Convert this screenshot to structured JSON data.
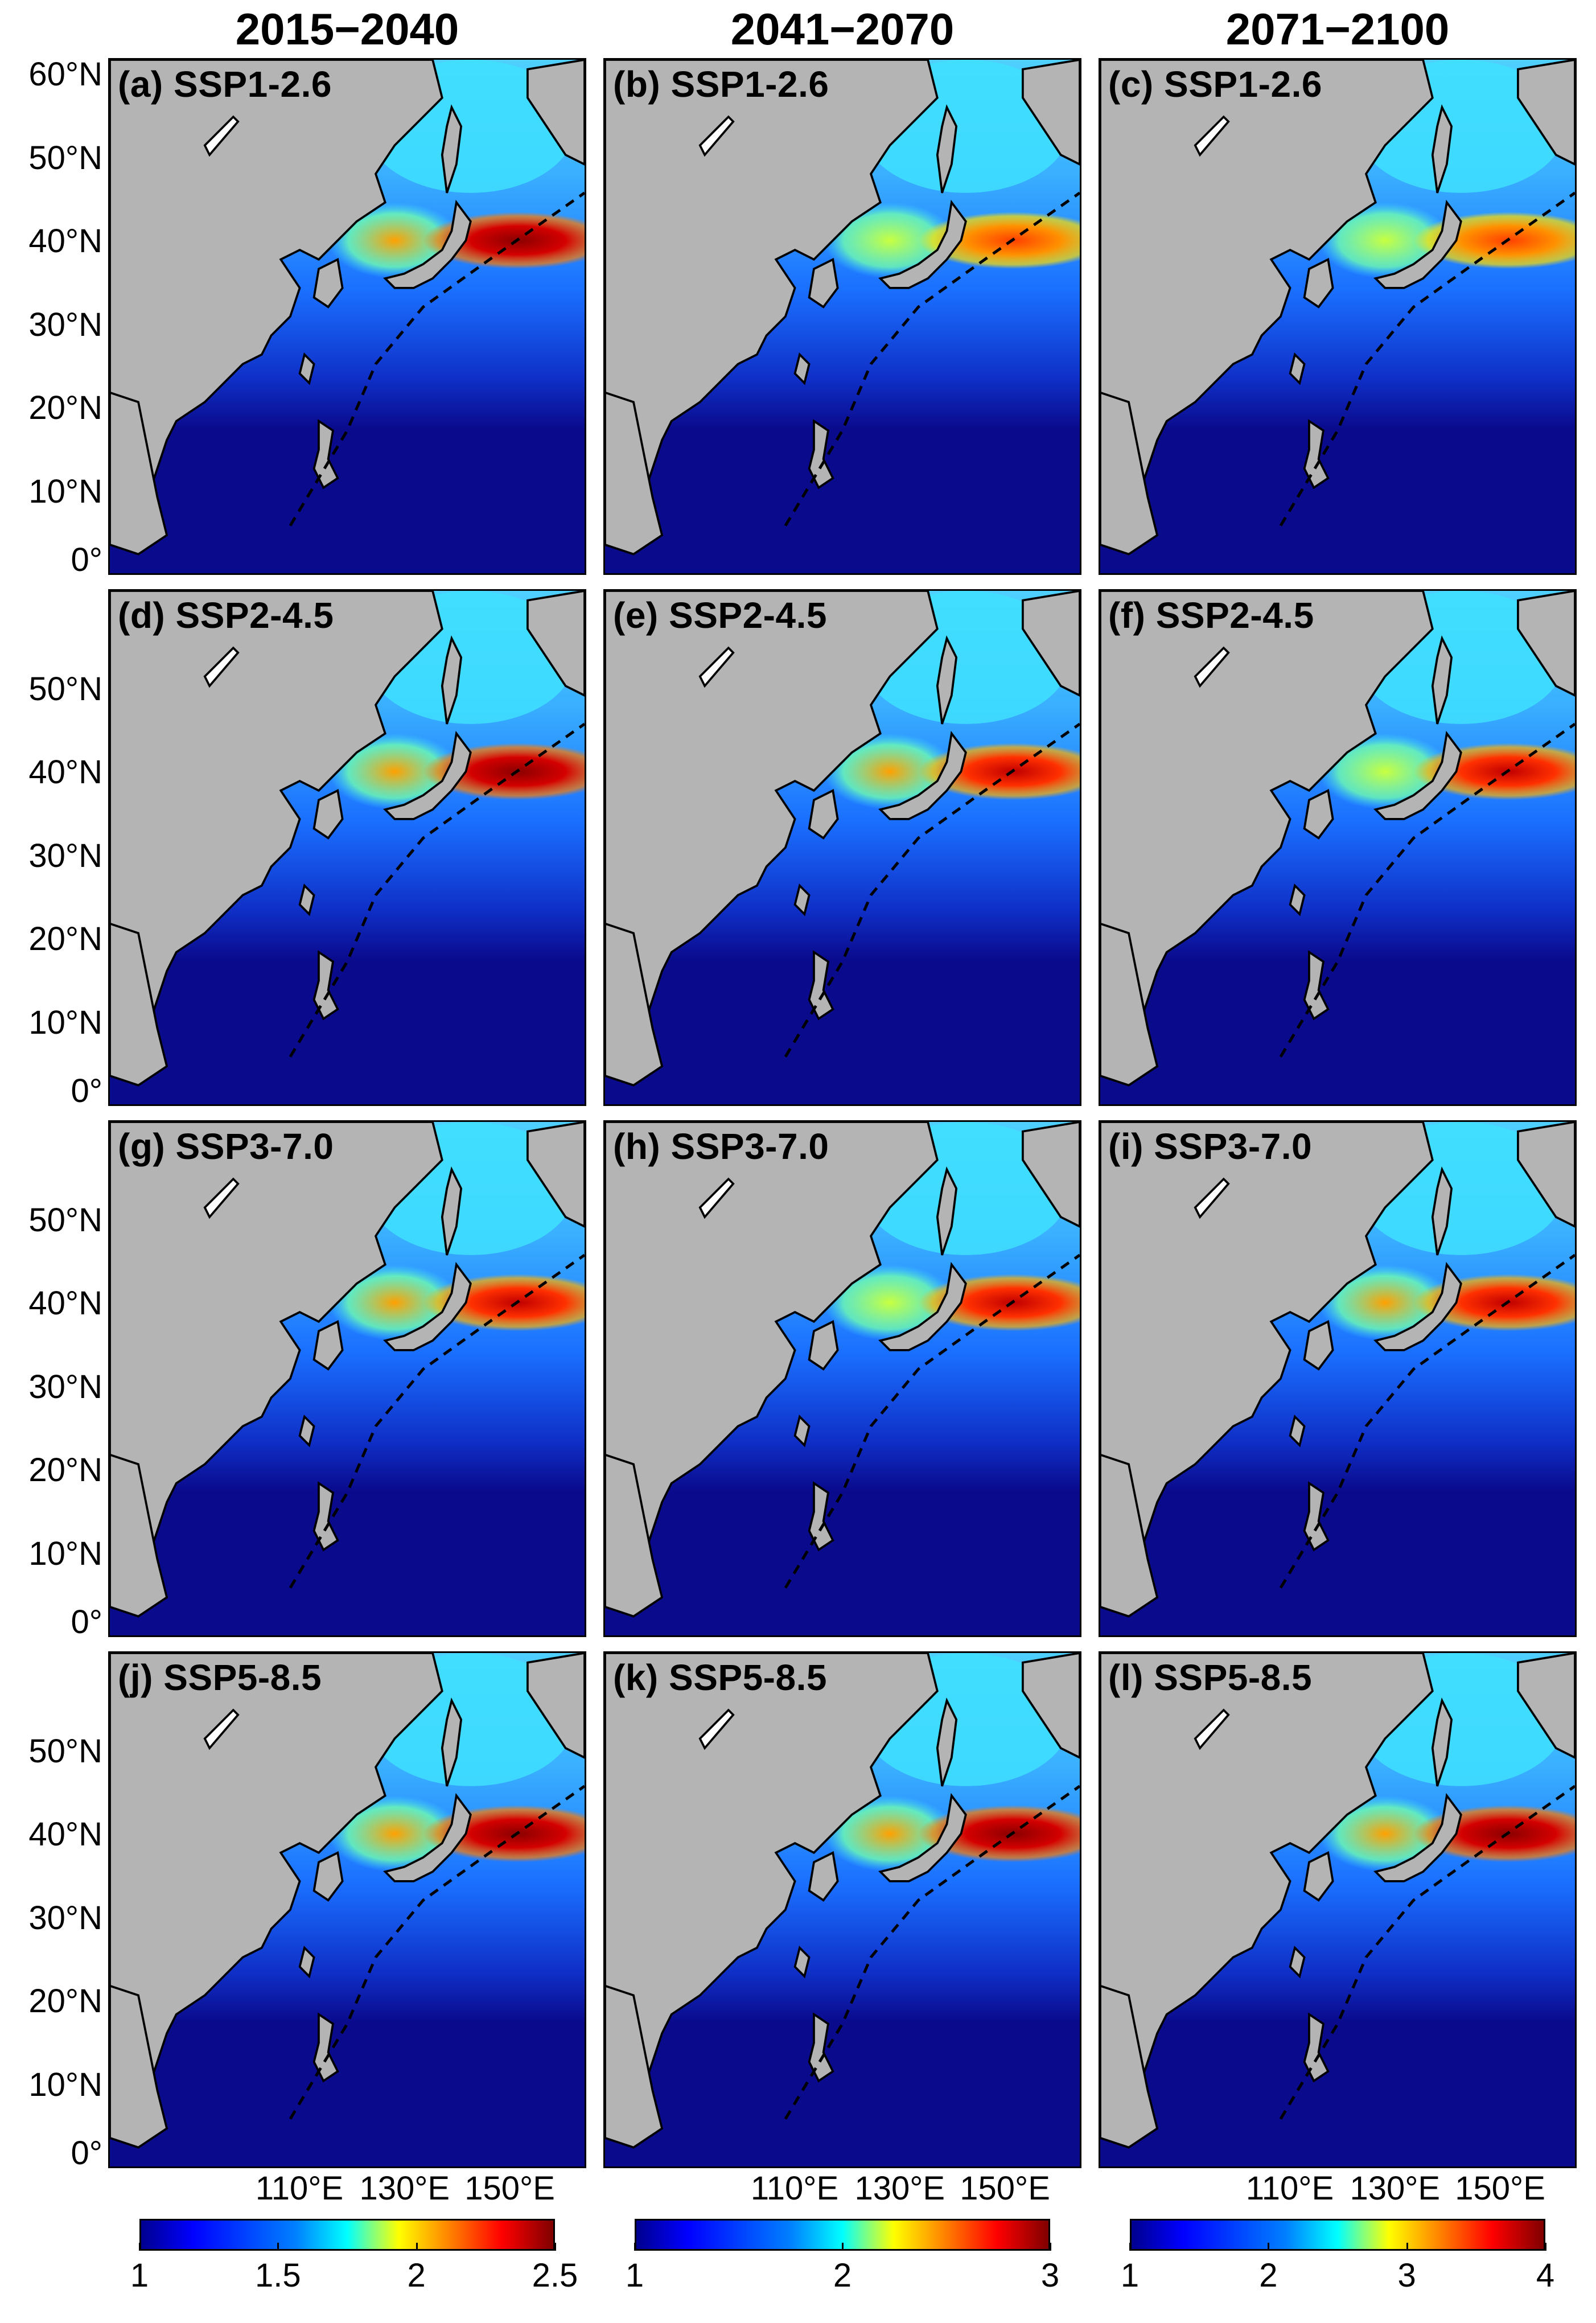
{
  "columns": [
    "2015−2040",
    "2041−2070",
    "2071−2100"
  ],
  "rows": [
    [
      {
        "label": "(a) SSP1-2.6",
        "intensity": 1.0
      },
      {
        "label": "(b) SSP1-2.6",
        "intensity": 0.65
      },
      {
        "label": "(c) SSP1-2.6",
        "intensity": 0.5
      }
    ],
    [
      {
        "label": "(d) SSP2-4.5",
        "intensity": 1.0
      },
      {
        "label": "(e) SSP2-4.5",
        "intensity": 0.8
      },
      {
        "label": "(f) SSP2-4.5",
        "intensity": 0.78
      }
    ],
    [
      {
        "label": "(g) SSP3-7.0",
        "intensity": 0.85
      },
      {
        "label": "(h) SSP3-7.0",
        "intensity": 0.75
      },
      {
        "label": "(i) SSP3-7.0",
        "intensity": 0.82
      }
    ],
    [
      {
        "label": "(j) SSP5-8.5",
        "intensity": 1.0
      },
      {
        "label": "(k) SSP5-8.5",
        "intensity": 0.95
      },
      {
        "label": "(l) SSP5-8.5",
        "intensity": 1.0
      }
    ]
  ],
  "y_ticks_first_row": [
    "60°N",
    "50°N",
    "40°N",
    "30°N",
    "20°N",
    "10°N",
    "0°"
  ],
  "y_ticks_other_rows": [
    "50°N",
    "40°N",
    "30°N",
    "20°N",
    "10°N",
    "0°"
  ],
  "x_ticks": [
    "110°E",
    "130°E",
    "150°E"
  ],
  "colorbars": [
    {
      "ticks": [
        "1",
        "1.5",
        "2",
        "2.5"
      ],
      "range": [
        1,
        2.5
      ]
    },
    {
      "ticks": [
        "1",
        "2",
        "3"
      ],
      "range": [
        1,
        3
      ]
    },
    {
      "ticks": [
        "1",
        "2",
        "3",
        "4"
      ],
      "range": [
        1,
        4
      ]
    }
  ],
  "colors": {
    "land": "#b4b4b4",
    "ocean_low": "#0a0a8c"
  }
}
